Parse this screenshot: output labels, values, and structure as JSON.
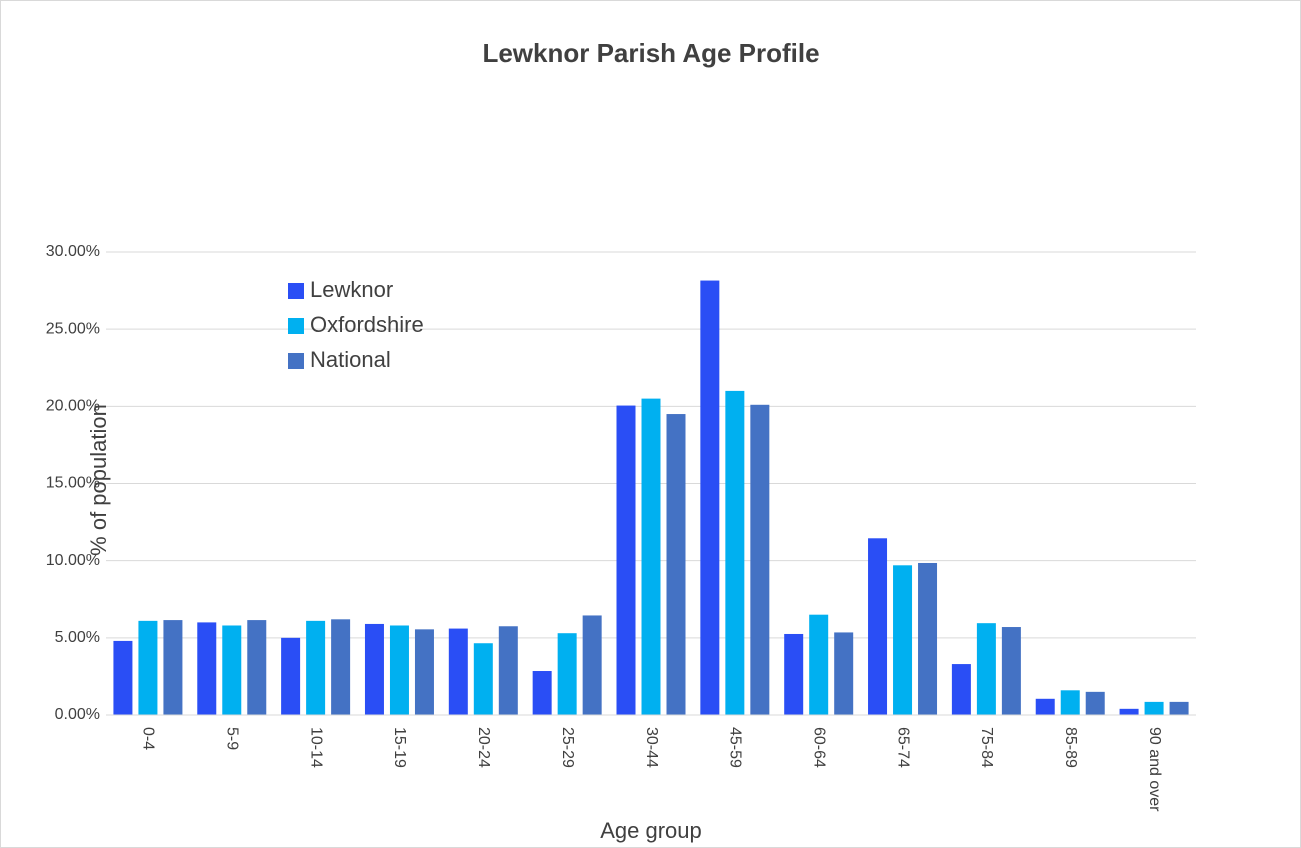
{
  "chart_data": {
    "type": "bar",
    "title": "Lewknor Parish Age Profile",
    "x_label": "Age group",
    "y_label": "% of population",
    "categories": [
      "0-4",
      "5-9",
      "10-14",
      "15-19",
      "20-24",
      "25-29",
      "30-44",
      "45-59",
      "60-64",
      "65-74",
      "75-84",
      "85-89",
      "90 and over"
    ],
    "series": [
      {
        "name": "Lewknor",
        "color": "#2a4ef5",
        "values": [
          4.8,
          6.0,
          5.0,
          5.9,
          5.6,
          2.85,
          20.05,
          28.15,
          5.25,
          11.45,
          3.3,
          1.05,
          0.4
        ]
      },
      {
        "name": "Oxfordshire",
        "color": "#00b0f0",
        "values": [
          6.1,
          5.8,
          6.1,
          5.8,
          4.65,
          5.3,
          20.5,
          21.0,
          6.5,
          9.7,
          5.95,
          1.6,
          0.85
        ]
      },
      {
        "name": "National",
        "color": "#4472c4",
        "values": [
          6.15,
          6.15,
          6.2,
          5.55,
          5.75,
          6.45,
          19.5,
          20.1,
          5.35,
          9.85,
          5.7,
          1.5,
          0.85
        ]
      }
    ],
    "ylim": [
      0,
      30
    ],
    "yticks": [
      {
        "value": 0,
        "label": "0.00%"
      },
      {
        "value": 5,
        "label": "5.00%"
      },
      {
        "value": 10,
        "label": "10.00%"
      },
      {
        "value": 15,
        "label": "15.00%"
      },
      {
        "value": 20,
        "label": "20.00%"
      },
      {
        "value": 25,
        "label": "25.00%"
      },
      {
        "value": 30,
        "label": "30.00%"
      }
    ],
    "grid": true,
    "legend": "upper left"
  }
}
